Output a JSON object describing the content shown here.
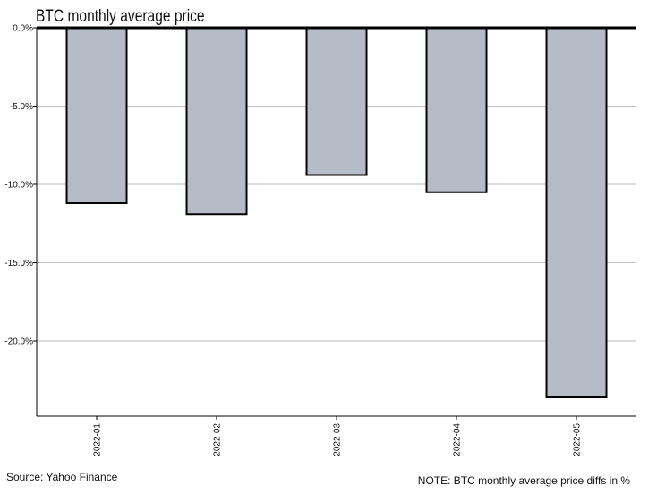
{
  "chart_data": {
    "type": "bar",
    "title": "BTC monthly average price",
    "categories": [
      "2022-01",
      "2022-02",
      "2022-03",
      "2022-04",
      "2022-05"
    ],
    "values": [
      -11.2,
      -11.9,
      -9.4,
      -10.5,
      -23.6
    ],
    "y_ticks": [
      "0.0%",
      "-5.0%",
      "-10.0%",
      "-15.0%",
      "-20.0%"
    ],
    "y_tick_values": [
      0,
      -5,
      -10,
      -15,
      -20
    ],
    "ylim": [
      -24.8,
      0
    ],
    "xlabel": "",
    "ylabel": "",
    "grid": "horizontal",
    "legend": "none",
    "colors": {
      "bar_fill": "#b6bcc7",
      "bar_edge": "#000000",
      "grid": "#bdbdbd",
      "zero_line": "#000000"
    }
  },
  "footer": {
    "source": "Source: Yahoo Finance",
    "note": "NOTE: BTC monthly average price diffs in %"
  }
}
